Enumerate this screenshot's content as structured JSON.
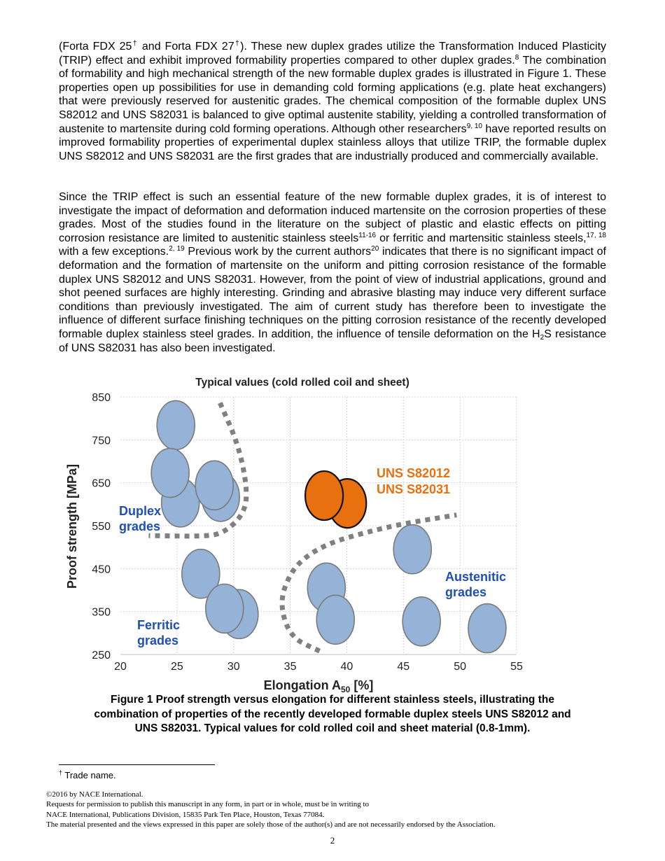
{
  "body": {
    "paragraphs": [
      [
        {
          "t": "(Forta FDX 25"
        },
        {
          "sup": "†"
        },
        {
          "t": " and Forta FDX 27"
        },
        {
          "sup": "†"
        },
        {
          "t": "). These new duplex grades utilize the Transformation Induced Plasticity (TRIP) effect and exhibit improved formability properties compared to other duplex grades."
        },
        {
          "sup": "8"
        },
        {
          "t": " The combination of formability and high mechanical strength of the new formable duplex grades is illustrated in Figure 1. These properties open up possibilities for use in demanding cold forming applications (e.g. plate heat exchangers) that were previously reserved for austenitic grades. The chemical composition of the formable duplex UNS S82012 and UNS S82031 is balanced to give optimal austenite stability, yielding a controlled transformation of austenite to martensite during cold forming operations. Although other researchers"
        },
        {
          "sup": "9, 10"
        },
        {
          "t": " have reported results on improved formability properties of experimental duplex stainless alloys that utilize TRIP, the formable duplex UNS S82012 and UNS S82031 are the first grades that are industrially produced and commercially available."
        }
      ],
      [
        {
          "t": "Since the TRIP effect is such an essential feature of the new formable duplex grades, it is of interest to investigate the impact of deformation and deformation induced martensite on the corrosion properties of these grades. Most of the studies found in the literature on the subject of plastic and elastic effects on pitting corrosion resistance are limited to austenitic stainless steels"
        },
        {
          "sup": "11-16"
        },
        {
          "t": " or ferritic and martensitic stainless steels,"
        },
        {
          "sup": "17, 18"
        },
        {
          "t": " with a few exceptions."
        },
        {
          "sup": "2, 19"
        },
        {
          "t": " Previous work by the current authors"
        },
        {
          "sup": "20"
        },
        {
          "t": " indicates that there is no significant impact of deformation and the formation of martensite on the uniform and pitting corrosion resistance of the formable duplex UNS S82012 and UNS S82031. However, from the point of view of industrial applications, ground and shot peened surfaces are highly interesting. Grinding and abrasive blasting may induce very different surface conditions than previously investigated. The aim of current study has therefore been to investigate the influence of different surface finishing techniques on the pitting corrosion resistance of the recently developed formable duplex stainless steel grades. In addition, the influence of tensile deformation on the H"
        },
        {
          "sub": "2"
        },
        {
          "t": "S resistance of UNS S82031 has also been investigated."
        }
      ]
    ]
  },
  "chart_data": {
    "type": "scatter",
    "title": "Typical values (cold rolled coil and sheet)",
    "xlabel": "Elongation A",
    "xlabel_sub": "50",
    "xlabel_unit": " [%]",
    "ylabel": "Proof strength [MPa]",
    "xlim": [
      20,
      55
    ],
    "ylim": [
      250,
      850
    ],
    "xticks": [
      20,
      25,
      30,
      35,
      40,
      45,
      50,
      55
    ],
    "yticks": [
      250,
      350,
      450,
      550,
      650,
      750,
      850
    ],
    "grid": true,
    "colors": {
      "standard": "#95b3d7",
      "formable": "#e8700e",
      "label_blue": "#1f4fb4",
      "label_orange": "#e8700e",
      "boundary": "#808080"
    },
    "series": [
      {
        "group": "standard",
        "points": [
          {
            "x": 25.3,
            "y": 604
          },
          {
            "x": 28.85,
            "y": 617
          },
          {
            "x": 24.9,
            "y": 784
          },
          {
            "x": 24.4,
            "y": 673
          },
          {
            "x": 28.3,
            "y": 644
          },
          {
            "x": 27.1,
            "y": 438
          },
          {
            "x": 30.5,
            "y": 344
          },
          {
            "x": 29.2,
            "y": 357
          },
          {
            "x": 38.2,
            "y": 406
          },
          {
            "x": 39.0,
            "y": 331
          },
          {
            "x": 45.8,
            "y": 495
          },
          {
            "x": 46.6,
            "y": 327
          },
          {
            "x": 52.4,
            "y": 311
          }
        ]
      },
      {
        "group": "formable",
        "points": [
          {
            "x": 40.05,
            "y": 602
          },
          {
            "x": 38.0,
            "y": 620
          }
        ]
      }
    ],
    "boundaries": [
      [
        [
          28.8,
          836
        ],
        [
          30.4,
          740
        ],
        [
          31.2,
          640
        ],
        [
          31.0,
          580
        ],
        [
          29.1,
          531
        ],
        [
          27,
          525
        ],
        [
          22.5,
          527
        ]
      ],
      [
        [
          37.6,
          258
        ],
        [
          35.0,
          290
        ],
        [
          34.05,
          371
        ],
        [
          35.0,
          440
        ],
        [
          36.4,
          479
        ],
        [
          38.5,
          510
        ],
        [
          41.6,
          534
        ],
        [
          45,
          555
        ],
        [
          49.7,
          575
        ]
      ]
    ],
    "annotations": [
      {
        "text": "UNS S82012",
        "color": "orange"
      },
      {
        "text": "UNS S82031",
        "color": "orange"
      },
      {
        "text": "Duplex",
        "color": "blue"
      },
      {
        "text": "grades",
        "color": "blue"
      },
      {
        "text": "Austenitic",
        "color": "blue"
      },
      {
        "text": "grades",
        "color": "blue"
      },
      {
        "text": "Ferritic",
        "color": "blue"
      },
      {
        "text": "grades",
        "color": "blue"
      }
    ]
  },
  "figure": {
    "caption_lines": [
      "Figure 1 Proof strength versus elongation for different stainless steels, illustrating the",
      "combination of properties of the recently developed formable duplex steels UNS S82012 and",
      "UNS S82031. Typical values for cold rolled coil and sheet material (0.8-1mm)."
    ]
  },
  "footnote": {
    "mark": "†",
    "text": " Trade name."
  },
  "legal": {
    "lines": [
      "©2016 by NACE International.",
      "Requests for permission to publish this manuscript in any form, in part or in whole, must be in writing to",
      "NACE International, Publications Division, 15835 Park Ten Place, Houston, Texas 77084.",
      "The material presented and the views expressed in this paper are solely those of the author(s) and are not necessarily endorsed by the Association."
    ]
  },
  "page_number": "2"
}
